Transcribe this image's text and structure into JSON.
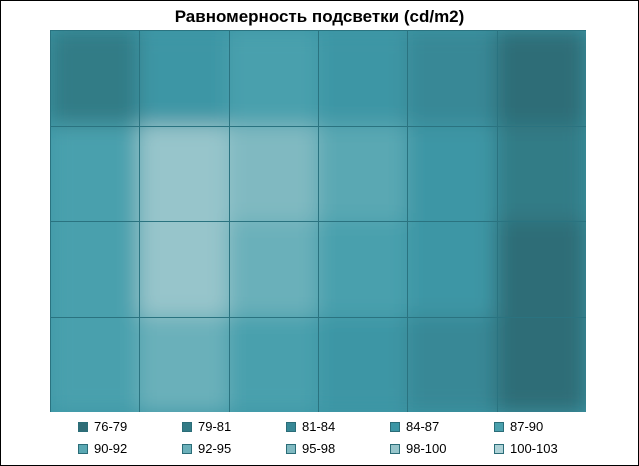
{
  "chart_data": {
    "type": "heatmap",
    "title": "Равномерность подсветки (cd/m2)",
    "xlabel": "",
    "ylabel": "",
    "columns": 6,
    "rows": 4,
    "value_range": [
      76,
      103
    ],
    "grid": true,
    "legend_position": "bottom",
    "grid_values": [
      [
        80,
        85,
        88,
        87,
        84,
        79
      ],
      [
        88,
        99,
        97,
        91,
        86,
        80
      ],
      [
        90,
        99,
        94,
        90,
        86,
        79
      ],
      [
        89,
        93,
        88,
        85,
        82,
        78
      ]
    ],
    "legend": [
      {
        "label": "76-79",
        "color": "#2f6d77"
      },
      {
        "label": "79-81",
        "color": "#337b86"
      },
      {
        "label": "81-84",
        "color": "#378896"
      },
      {
        "label": "84-87",
        "color": "#3c96a5"
      },
      {
        "label": "87-90",
        "color": "#4aa0ad"
      },
      {
        "label": "90-92",
        "color": "#5aa8b3"
      },
      {
        "label": "92-95",
        "color": "#6bb0ba"
      },
      {
        "label": "95-98",
        "color": "#80b9c1"
      },
      {
        "label": "98-100",
        "color": "#97c5cb"
      },
      {
        "label": "100-103",
        "color": "#aed2d7"
      }
    ]
  }
}
